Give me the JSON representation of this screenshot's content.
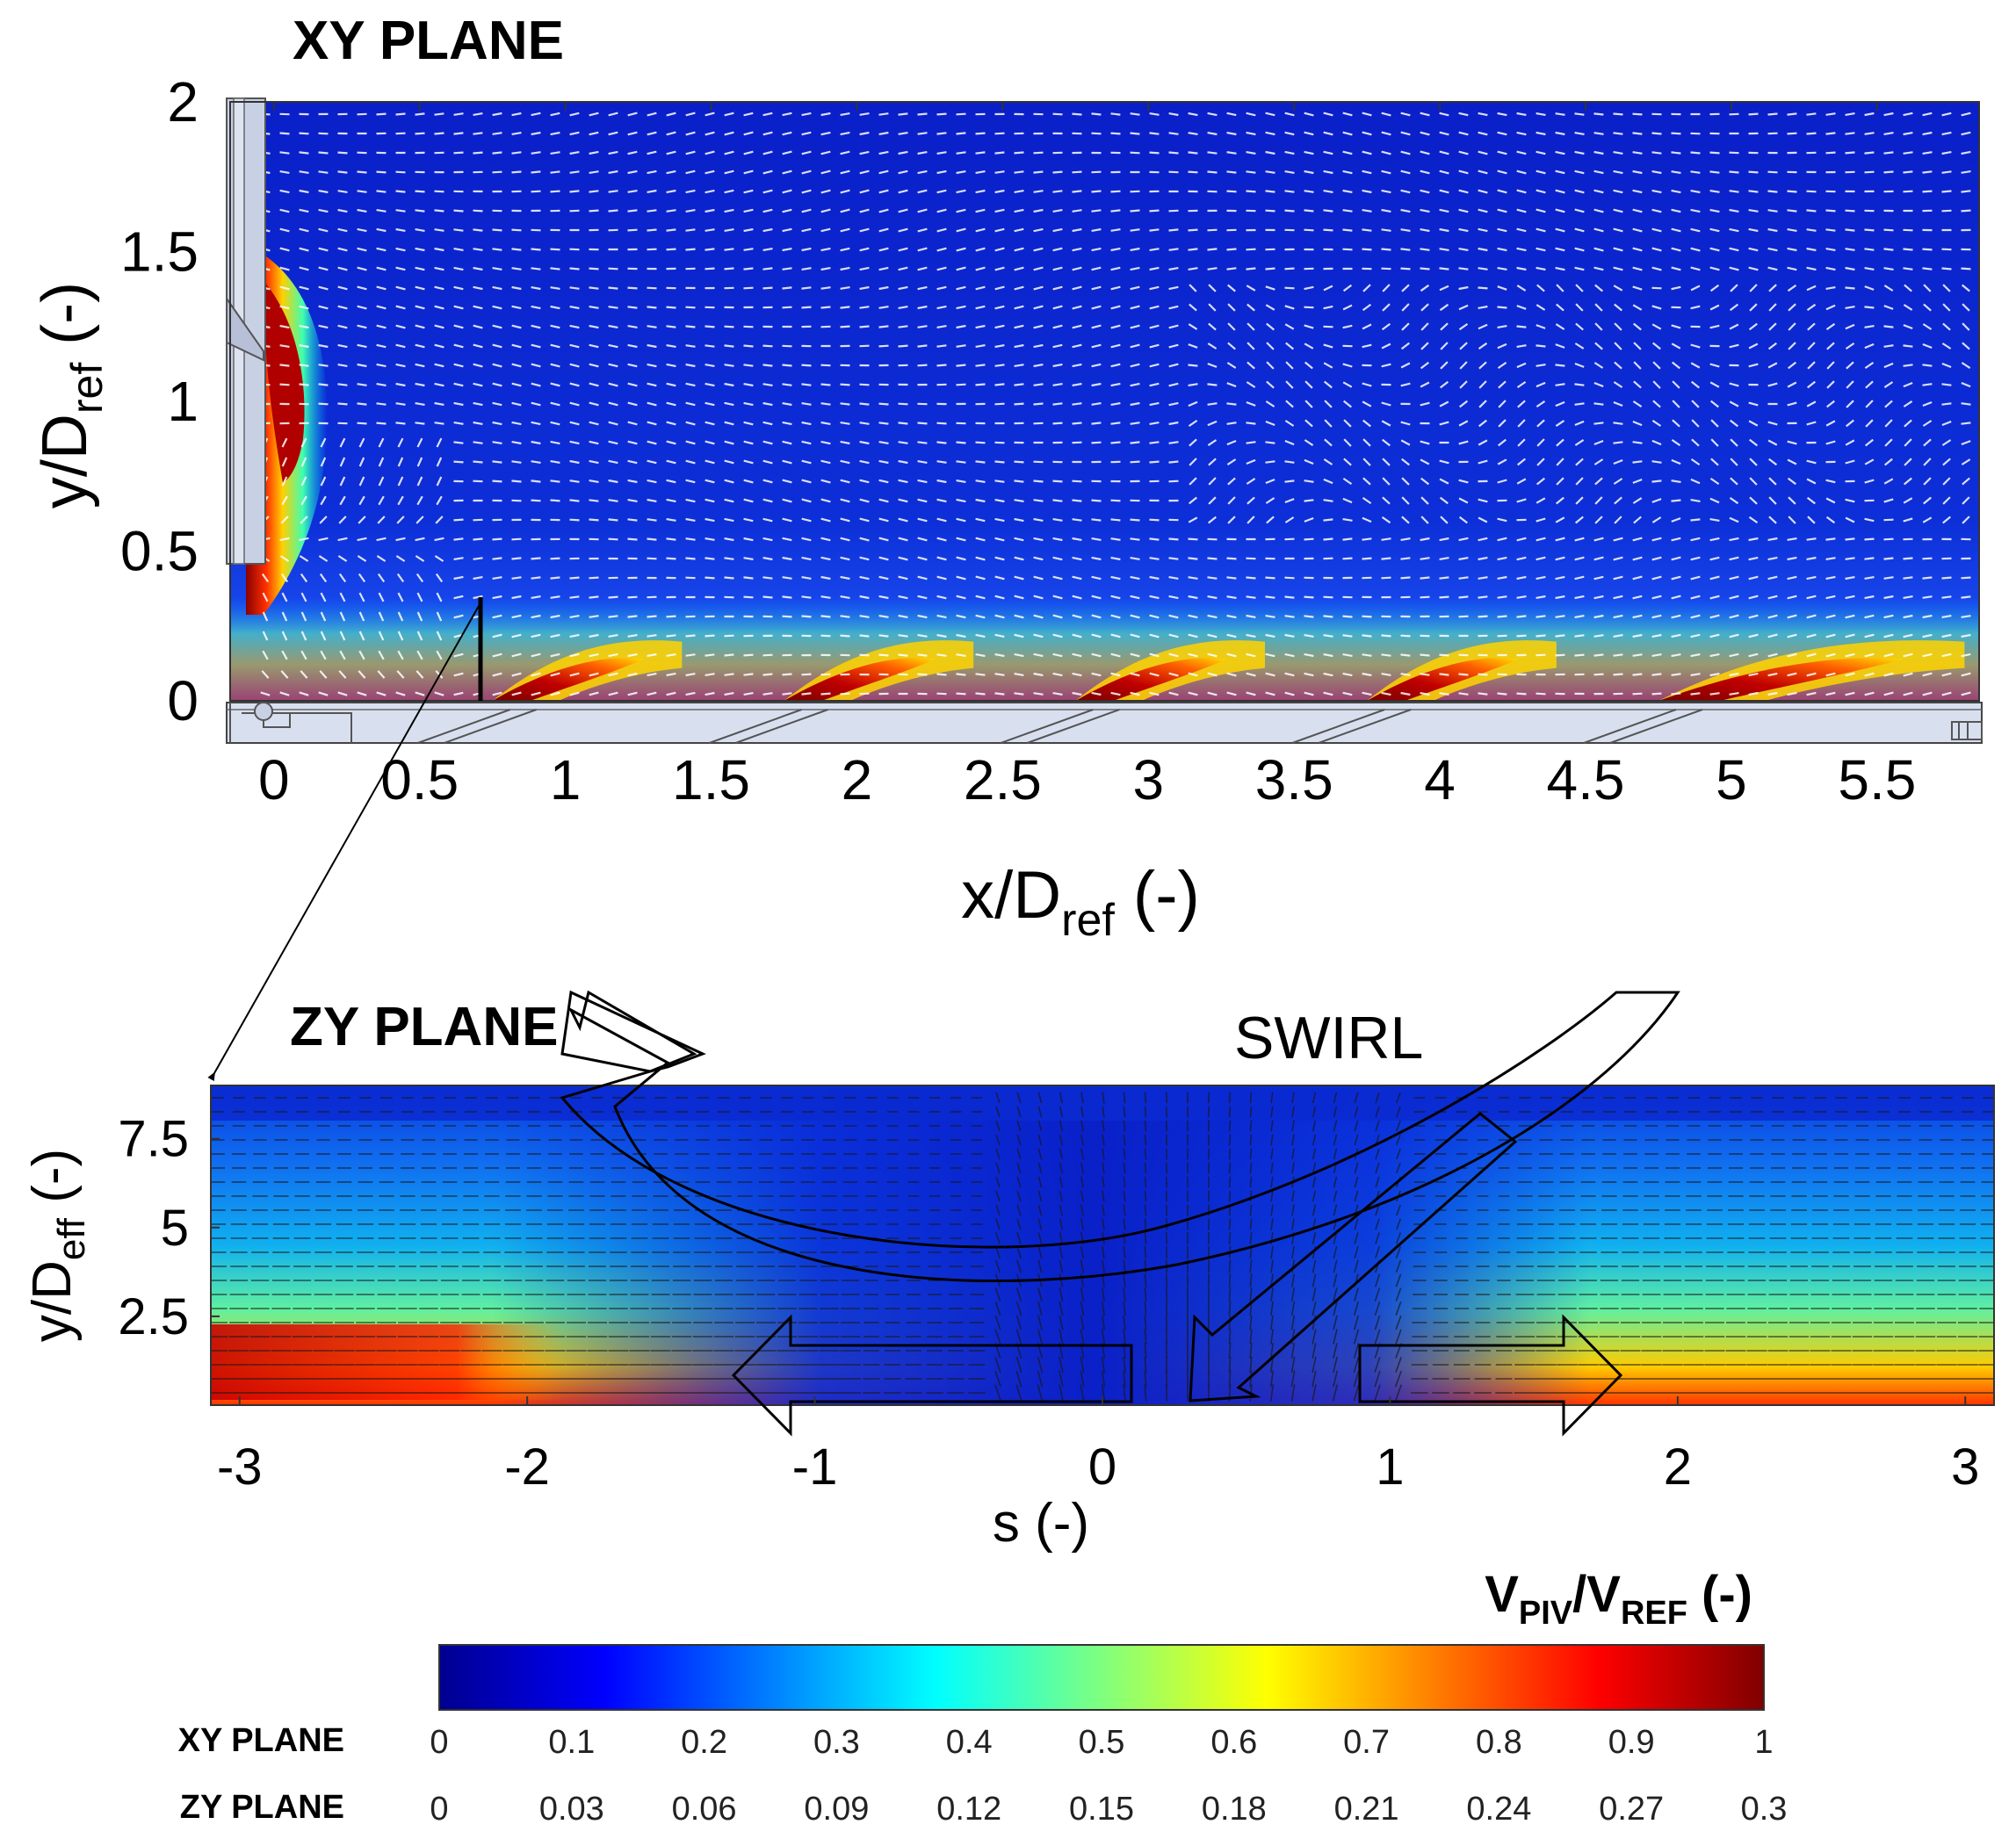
{
  "chart_data": [
    {
      "type": "heatmap",
      "panel": "XY plane",
      "title": "XY PLANE",
      "xlabel_main": "x/D",
      "xlabel_sub": "ref",
      "xlabel_unit": " (-)",
      "ylabel_main": "y/D",
      "ylabel_sub": "ref",
      "ylabel_unit": " (-)",
      "xlim": [
        -0.15,
        5.85
      ],
      "ylim": [
        0,
        2
      ],
      "xticks": [
        0,
        0.5,
        1,
        1.5,
        2,
        2.5,
        3,
        3.5,
        4,
        4.5,
        5,
        5.5
      ],
      "xtick_labels": [
        "0",
        "0.5",
        "1",
        "1.5",
        "2",
        "2.5",
        "3",
        "3.5",
        "4",
        "4.5",
        "5",
        "5.5"
      ],
      "yticks": [
        0,
        0.5,
        1,
        1.5,
        2
      ],
      "ytick_labels": [
        "0",
        "0.5",
        "1",
        "1.5",
        "2"
      ],
      "description": "velocity magnitude with white vector arrows",
      "jet_regions": [
        {
          "x_start": 0.75,
          "x_end": 1.4,
          "peak": 1.0
        },
        {
          "x_start": 1.75,
          "x_end": 2.4,
          "peak": 1.0
        },
        {
          "x_start": 2.75,
          "x_end": 3.4,
          "peak": 1.0
        },
        {
          "x_start": 3.75,
          "x_end": 4.4,
          "peak": 1.0
        },
        {
          "x_start": 4.75,
          "x_end": 5.8,
          "peak": 1.0
        }
      ],
      "inlet_jet": {
        "x": 0.05,
        "y_range": [
          0.9,
          1.5
        ],
        "peak": 1.0
      }
    },
    {
      "type": "heatmap",
      "panel": "ZY plane",
      "title": "ZY PLANE",
      "annotation": "SWIRL",
      "xlabel": "s  (-)",
      "ylabel_main": "y/D",
      "ylabel_sub": "eff",
      "ylabel_unit": " (-)",
      "xlim": [
        -3.1,
        3.1
      ],
      "ylim": [
        0,
        9
      ],
      "xticks": [
        -3,
        -2,
        -1,
        0,
        1,
        2,
        3
      ],
      "xtick_labels": [
        "-3",
        "-2",
        "-1",
        "0",
        "1",
        "2",
        "3"
      ],
      "yticks": [
        2.5,
        5,
        7.5
      ],
      "ytick_labels": [
        "2.5",
        "5",
        "7.5"
      ],
      "description": "velocity magnitude with black vector arrows; high near wall on left"
    }
  ],
  "colorbar": {
    "title_main": "V",
    "title_sub1": "PIV",
    "title_sep": "/V",
    "title_sub2": "REF",
    "title_unit": "  (-)",
    "colormap": "jet",
    "colors": [
      "#00008f",
      "#0000ff",
      "#00ffff",
      "#ffff00",
      "#ff0000",
      "#800000"
    ],
    "rows": [
      {
        "label": "XY PLANE",
        "ticks": [
          "0",
          "0.1",
          "0.2",
          "0.3",
          "0.4",
          "0.5",
          "0.6",
          "0.7",
          "0.8",
          "0.9",
          "1"
        ]
      },
      {
        "label": "ZY PLANE",
        "ticks": [
          "0",
          "0.03",
          "0.06",
          "0.09",
          "0.12",
          "0.15",
          "0.18",
          "0.21",
          "0.24",
          "0.27",
          "0.3"
        ]
      }
    ]
  }
}
